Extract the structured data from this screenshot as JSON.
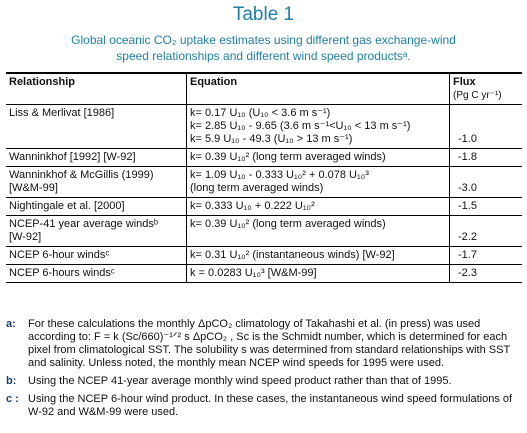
{
  "header": {
    "title": "Table 1",
    "subtitle": [
      "Global oceanic CO₂ uptake estimates using different gas exchange-wind",
      "speed relationships and different wind speed productsᵃ."
    ]
  },
  "table": {
    "columns": [
      "Relationship",
      "Equation",
      "Flux"
    ],
    "flux_unit": "(Pg C yr⁻¹)",
    "rows": [
      {
        "relationship": [
          "Liss & Merlivat [1986]"
        ],
        "equation": [
          "k= 0.17 U₁₀   (U₁₀ < 3.6 m s⁻¹)",
          "k= 2.85 U₁₀  - 9.65  (3.6 m s⁻¹<U₁₀  < 13 m s⁻¹)",
          "k= 5.9 U₁₀  - 49.3  (U₁₀ > 13 m s⁻¹)"
        ],
        "flux": "-1.0"
      },
      {
        "relationship": [
          "Wanninkhof [1992] [W-92]"
        ],
        "equation": [
          "k= 0.39 U₁₀²   (long term averaged winds)"
        ],
        "flux": "-1.8"
      },
      {
        "relationship": [
          "Wanninkhof & McGillis (1999)",
          "[W&M-99]"
        ],
        "equation": [
          "k= 1.09 U₁₀  - 0.333 U₁₀²  + 0.078 U₁₀³",
          "(long term averaged winds)"
        ],
        "flux": "-3.0"
      },
      {
        "relationship": [
          "Nightingale et al. [2000]"
        ],
        "equation": [
          "k= 0.333 U₁₀  + 0.222 U₁₀²"
        ],
        "flux": "-1.5"
      },
      {
        "relationship": [
          "NCEP-41 year average windsᵇ",
          "[W-92]"
        ],
        "equation": [
          "k= 0.39 U₁₀²   (long term averaged winds)"
        ],
        "flux": "-2.2"
      },
      {
        "relationship": [
          "NCEP 6-hour windsᶜ"
        ],
        "equation": [
          "k= 0.31 U₁₀²   (instantaneous winds) [W-92]"
        ],
        "flux": "-1.7"
      },
      {
        "relationship": [
          "NCEP 6-hours windsᶜ"
        ],
        "equation": [
          "k = 0.0283 U₁₀³   [W&M-99]"
        ],
        "flux": "-2.3"
      }
    ]
  },
  "notes": [
    {
      "label": "a:",
      "text": "For these calculations the monthly ΔpCO₂ climatology of Takahashi et al. (in press) was used according to: F = k (Sc/660)⁻¹ᐟ² s ΔpCO₂ , Sc is the Schmidt number, which is determined for each pixel from climatological SST.  The solubility s was determined from standard relationships with SST and salinity.  Unless noted, the monthly mean NCEP wind speeds for 1995 were used."
    },
    {
      "label": "b:",
      "text": "Using the NCEP 41-year average monthly wind speed product rather than that of 1995."
    },
    {
      "label": "c :",
      "text": "Using the NCEP 6-hour wind product.  In these cases, the instantaneous wind speed formulations of W-92 and W&M-99 were used."
    }
  ]
}
